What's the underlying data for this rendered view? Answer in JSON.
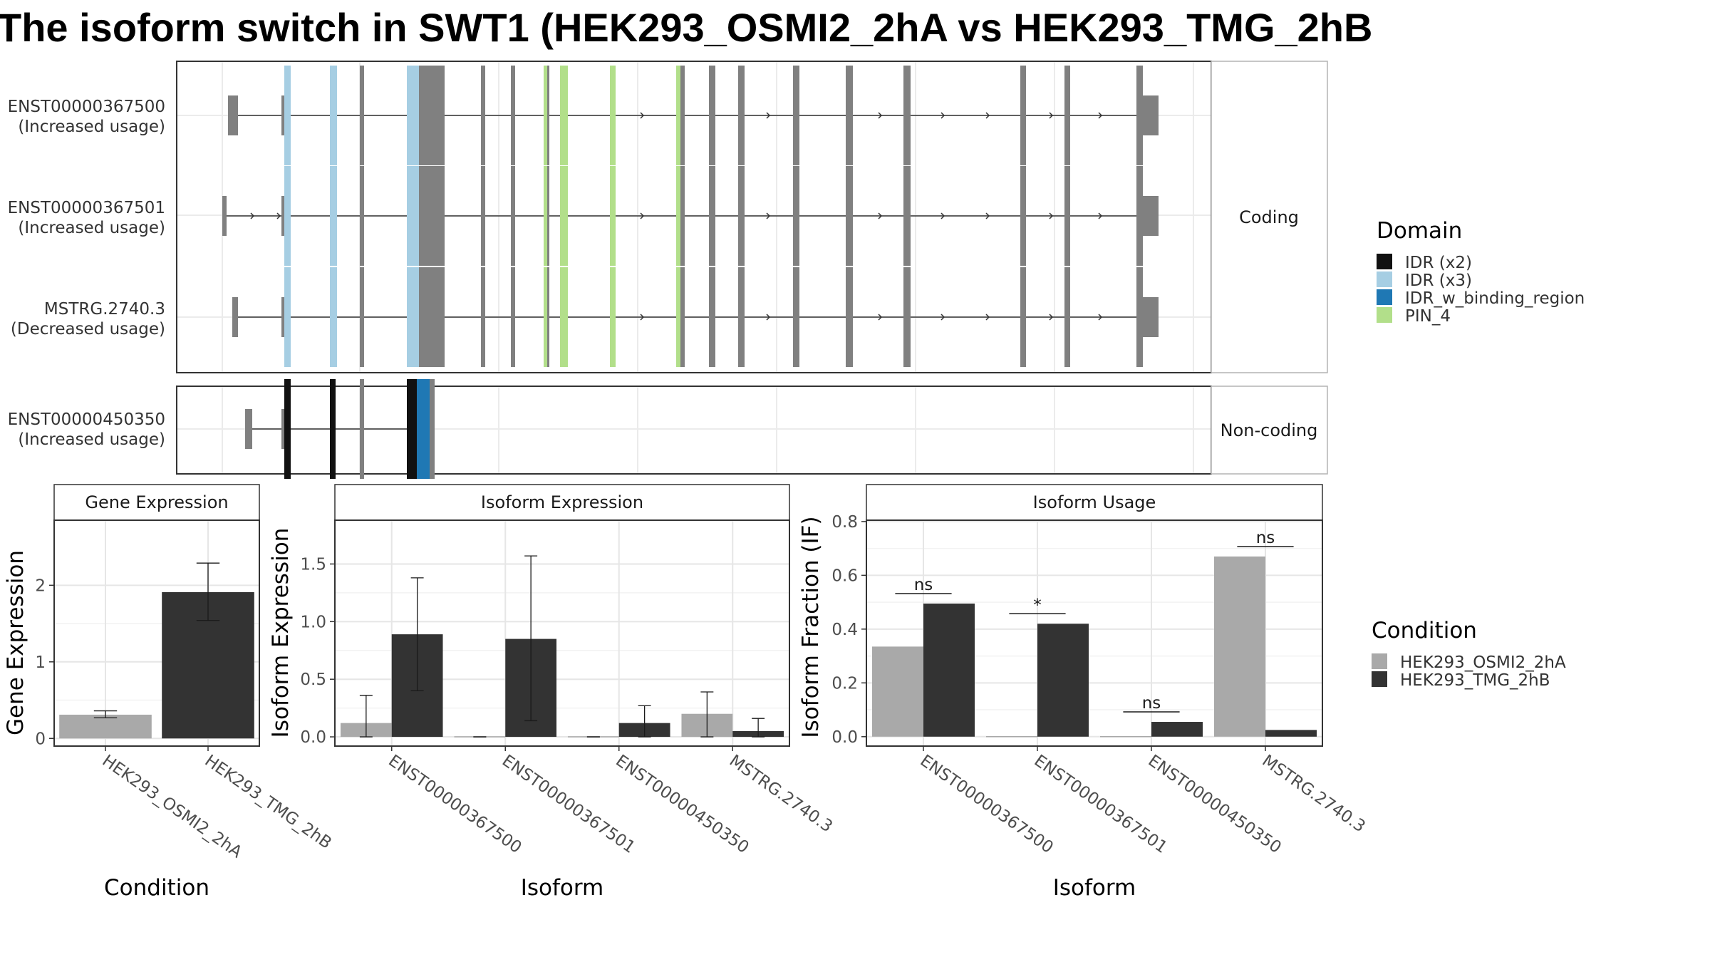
{
  "title": "The isoform switch in SWT1 (HEK293_OSMI2_2hA vs HEK293_TMG_2hB",
  "colors": {
    "exon": "#808080",
    "IDR (x2)": "#111111",
    "IDR (x3)": "#a6cee3",
    "IDR_w_binding_region": "#1f78b4",
    "PIN_4": "#b2df8a",
    "HEK293_OSMI2_2hA": "#a9a9a9",
    "HEK293_TMG_2hB": "#333333"
  },
  "transcript_plot": {
    "groups": [
      {
        "name": "Coding",
        "transcripts": [
          {
            "id": "ENST00000367500",
            "usage": "(Increased usage)"
          },
          {
            "id": "ENST00000367501",
            "usage": "(Increased usage)"
          },
          {
            "id": "MSTRG.2740.3",
            "usage": "(Decreased usage)"
          }
        ]
      },
      {
        "name": "Non-coding",
        "transcripts": [
          {
            "id": "ENST00000450350",
            "usage": "(Increased usage)"
          }
        ]
      }
    ]
  },
  "legend_domain": {
    "title": "Domain",
    "items": [
      "IDR (x2)",
      "IDR (x3)",
      "IDR_w_binding_region",
      "PIN_4"
    ]
  },
  "legend_condition": {
    "title": "Condition",
    "items": [
      "HEK293_OSMI2_2hA",
      "HEK293_TMG_2hB"
    ]
  },
  "chart_data": [
    {
      "type": "bar",
      "title": "Gene Expression",
      "xlabel": "Condition",
      "ylabel": "Gene Expression",
      "categories": [
        "HEK293_OSMI2_2hA",
        "HEK293_TMG_2hB"
      ],
      "values": [
        0.31,
        1.91
      ],
      "errors": [
        [
          0.27,
          0.36
        ],
        [
          1.54,
          2.29
        ]
      ],
      "yticks": [
        0,
        1,
        2
      ],
      "ylim": [
        -0.1,
        2.85
      ],
      "grid": true
    },
    {
      "type": "bar",
      "title": "Isoform Expression",
      "xlabel": "Isoform",
      "ylabel": "Isoform Expression",
      "categories": [
        "ENST00000367500",
        "ENST00000367501",
        "ENST00000450350",
        "MSTRG.2740.3"
      ],
      "series": [
        {
          "name": "HEK293_OSMI2_2hA",
          "values": [
            0.12,
            0.0,
            0.0,
            0.2
          ],
          "errors": [
            [
              0.0,
              0.36
            ],
            [
              0.0,
              0.0
            ],
            [
              0.0,
              0.0
            ],
            [
              0.0,
              0.39
            ]
          ]
        },
        {
          "name": "HEK293_TMG_2hB",
          "values": [
            0.89,
            0.85,
            0.12,
            0.05
          ],
          "errors": [
            [
              0.4,
              1.38
            ],
            [
              0.14,
              1.57
            ],
            [
              0.0,
              0.27
            ],
            [
              0.0,
              0.16
            ]
          ]
        }
      ],
      "yticks": [
        0.0,
        0.5,
        1.0,
        1.5
      ],
      "yticklabels": [
        "0.0",
        "0.5",
        "1.0",
        "1.5"
      ],
      "ylim": [
        -0.08,
        1.88
      ],
      "grid": true
    },
    {
      "type": "bar",
      "title": "Isoform Usage",
      "xlabel": "Isoform",
      "ylabel": "Isoform Fraction (IF)",
      "categories": [
        "ENST00000367500",
        "ENST00000367501",
        "ENST00000450350",
        "MSTRG.2740.3"
      ],
      "series": [
        {
          "name": "HEK293_OSMI2_2hA",
          "values": [
            0.335,
            0.0,
            0.0,
            0.67
          ]
        },
        {
          "name": "HEK293_TMG_2hB",
          "values": [
            0.495,
            0.42,
            0.055,
            0.025
          ]
        }
      ],
      "significance": [
        "ns",
        "*",
        "ns",
        "ns"
      ],
      "yticks": [
        0.0,
        0.2,
        0.4,
        0.6,
        0.8
      ],
      "yticklabels": [
        "0.0",
        "0.2",
        "0.4",
        "0.6",
        "0.8"
      ],
      "ylim": [
        -0.035,
        0.805
      ],
      "grid": true
    }
  ]
}
